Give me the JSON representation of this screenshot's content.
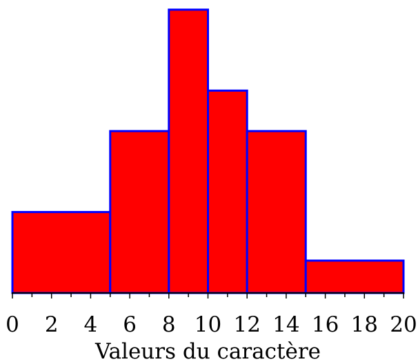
{
  "chart_data": {
    "type": "bar",
    "variant": "histogram",
    "xlabel": "Valeurs du caractère",
    "ylabel": "",
    "title": "",
    "xlim": [
      0,
      20
    ],
    "x_tick_labels": [
      "0",
      "2",
      "4",
      "6",
      "8",
      "10",
      "12",
      "14",
      "16",
      "18",
      "20"
    ],
    "minor_tick_step": 1,
    "bins": [
      {
        "start": 0,
        "end": 5,
        "height": 2
      },
      {
        "start": 5,
        "end": 8,
        "height": 4
      },
      {
        "start": 8,
        "end": 10,
        "height": 7
      },
      {
        "start": 10,
        "end": 12,
        "height": 5
      },
      {
        "start": 12,
        "end": 15,
        "height": 4
      },
      {
        "start": 15,
        "end": 20,
        "height": 0.8
      }
    ],
    "ylim": [
      0,
      7
    ],
    "grid": false,
    "legend": "none",
    "colors": {
      "fill": "#ff0000",
      "stroke": "#0000ff",
      "axis": "#000000"
    }
  }
}
